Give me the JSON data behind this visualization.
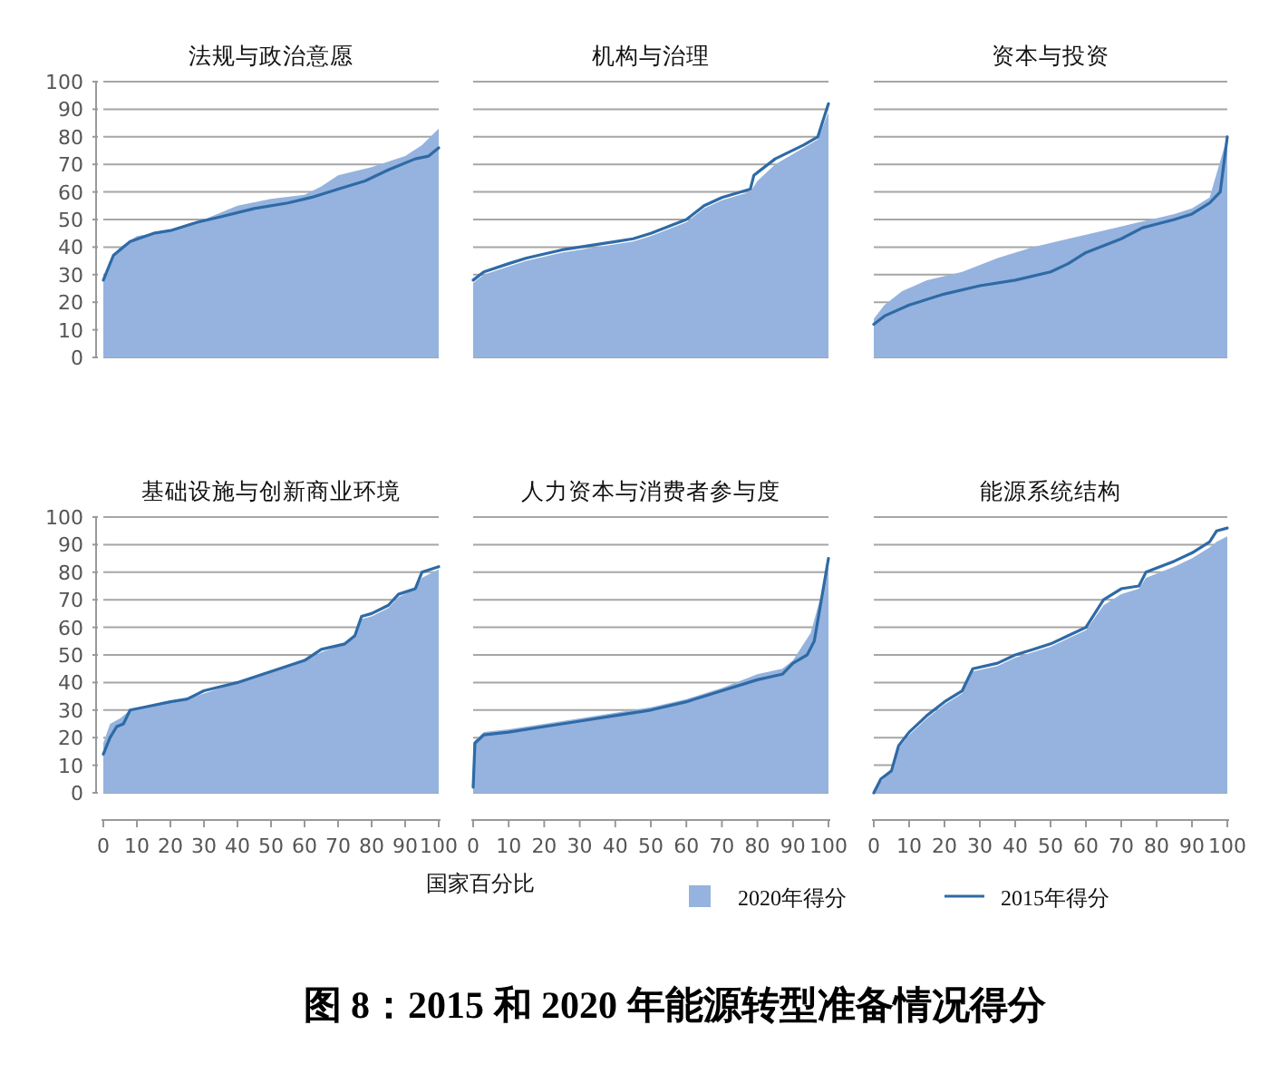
{
  "chart_data": [
    {
      "type": "area",
      "title": "法规与政治意愿",
      "xlim": [
        0,
        100
      ],
      "ylim": [
        0,
        100
      ],
      "yticks": [
        0,
        10,
        20,
        30,
        40,
        50,
        60,
        70,
        80,
        90,
        100
      ],
      "grid": "y",
      "tick_labels": "y",
      "annotations": [
        "图 8：2015 和 2020 年能源转型准备情况得分"
      ],
      "series": [
        {
          "type": "area",
          "color": "#95b3de",
          "x": [
            0,
            3,
            5,
            10,
            20,
            30,
            40,
            50,
            60,
            65,
            70,
            80,
            90,
            95,
            100
          ],
          "values": [
            29,
            37,
            40,
            44,
            46,
            50,
            55,
            57.5,
            59,
            62,
            66,
            69,
            73,
            77,
            83
          ]
        },
        {
          "type": "line",
          "color": "#2e6aa6",
          "x": [
            0,
            3,
            8,
            15,
            20,
            28,
            35,
            45,
            55,
            62,
            70,
            78,
            85,
            93,
            97,
            100
          ],
          "values": [
            28,
            37,
            42,
            45,
            46,
            49,
            51,
            54,
            56,
            58,
            61,
            64,
            68,
            72,
            73,
            76
          ]
        }
      ]
    },
    {
      "type": "area",
      "title": "机构与治理",
      "xlim": [
        0,
        100
      ],
      "ylim": [
        0,
        100
      ],
      "yticks": [
        0,
        10,
        20,
        30,
        40,
        50,
        60,
        70,
        80,
        90,
        100
      ],
      "grid": "y",
      "tick_labels": false,
      "series": [
        {
          "type": "area",
          "color": "#95b3de",
          "x": [
            0,
            3,
            10,
            15,
            25,
            40,
            45,
            50,
            60,
            65,
            70,
            78,
            80,
            85,
            93,
            97,
            100
          ],
          "values": [
            27,
            30,
            33,
            35,
            38,
            41,
            42,
            44,
            49,
            54,
            57,
            60,
            64,
            70,
            76,
            79,
            89
          ]
        },
        {
          "type": "line",
          "color": "#2e6aa6",
          "x": [
            0,
            3,
            10,
            15,
            25,
            40,
            45,
            50,
            60,
            65,
            70,
            78,
            79,
            85,
            93,
            97,
            100
          ],
          "values": [
            28,
            31,
            34,
            36,
            39,
            42,
            43,
            45,
            50,
            55,
            58,
            61,
            66,
            72,
            77,
            80,
            92
          ]
        }
      ]
    },
    {
      "type": "area",
      "title": "资本与投资",
      "xlim": [
        0,
        100
      ],
      "ylim": [
        0,
        100
      ],
      "yticks": [
        0,
        10,
        20,
        30,
        40,
        50,
        60,
        70,
        80,
        90,
        100
      ],
      "grid": "y",
      "tick_labels": false,
      "series": [
        {
          "type": "area",
          "color": "#95b3de",
          "x": [
            0,
            3,
            8,
            15,
            25,
            35,
            45,
            55,
            65,
            75,
            85,
            90,
            95,
            100
          ],
          "values": [
            14,
            19,
            24,
            28,
            31,
            36,
            40,
            43,
            46,
            49,
            52,
            54,
            58,
            80
          ]
        },
        {
          "type": "line",
          "color": "#2e6aa6",
          "x": [
            0,
            3,
            10,
            20,
            30,
            40,
            50,
            55,
            60,
            70,
            76,
            85,
            90,
            95,
            98,
            100
          ],
          "values": [
            12,
            15,
            19,
            23,
            26,
            28,
            31,
            34,
            38,
            43,
            47,
            50,
            52,
            56,
            60,
            80
          ]
        }
      ]
    },
    {
      "type": "area",
      "title": "基础设施与创新商业环境",
      "xlabel": "国家百分比",
      "xlim": [
        0,
        100
      ],
      "xticks": [
        0,
        10,
        20,
        30,
        40,
        50,
        60,
        70,
        80,
        90,
        100
      ],
      "ylim": [
        0,
        100
      ],
      "yticks": [
        0,
        10,
        20,
        30,
        40,
        50,
        60,
        70,
        80,
        90,
        100
      ],
      "grid": "y",
      "series": [
        {
          "type": "area",
          "color": "#95b3de",
          "x": [
            0,
            2,
            5,
            8,
            12,
            20,
            25,
            30,
            40,
            50,
            60,
            65,
            72,
            75,
            77,
            80,
            85,
            88,
            93,
            95,
            100
          ],
          "values": [
            18,
            25,
            27,
            30,
            31,
            33,
            34,
            36,
            40,
            44,
            48,
            51,
            54,
            57,
            63,
            64,
            67,
            71,
            74,
            78,
            81
          ]
        },
        {
          "type": "line",
          "color": "#2e6aa6",
          "x": [
            0,
            2,
            4,
            6,
            8,
            12,
            20,
            25,
            30,
            40,
            50,
            60,
            65,
            72,
            75,
            77,
            80,
            85,
            88,
            93,
            95,
            100
          ],
          "values": [
            14,
            20,
            24,
            25,
            30,
            31,
            33,
            34,
            37,
            40,
            44,
            48,
            52,
            54,
            57,
            64,
            65,
            68,
            72,
            74,
            80,
            82
          ]
        }
      ]
    },
    {
      "type": "area",
      "title": "人力资本与消费者参与度",
      "xlim": [
        0,
        100
      ],
      "xticks": [
        0,
        10,
        20,
        30,
        40,
        50,
        60,
        70,
        80,
        90,
        100
      ],
      "ylim": [
        0,
        100
      ],
      "yticks": [
        0,
        10,
        20,
        30,
        40,
        50,
        60,
        70,
        80,
        90,
        100
      ],
      "grid": "y",
      "tick_labels": "x",
      "legend": "bottom",
      "series": [
        {
          "type": "area",
          "name": "2020年得分",
          "color": "#95b3de",
          "x": [
            0,
            0.5,
            3,
            10,
            20,
            30,
            40,
            50,
            60,
            70,
            80,
            87,
            90,
            95,
            98,
            100
          ],
          "values": [
            18,
            19,
            22,
            23,
            25,
            27,
            29,
            31,
            34,
            38,
            43,
            45,
            48,
            58,
            72,
            85
          ]
        },
        {
          "type": "line",
          "name": "2015年得分",
          "color": "#2e6aa6",
          "x": [
            0,
            0.5,
            3,
            10,
            20,
            30,
            40,
            50,
            60,
            70,
            80,
            87,
            90,
            94,
            96,
            98,
            100
          ],
          "values": [
            2,
            18,
            21,
            22,
            24,
            26,
            28,
            30,
            33,
            37,
            41,
            43,
            47,
            50,
            55,
            70,
            85
          ]
        }
      ]
    },
    {
      "type": "area",
      "title": "能源系统结构",
      "xlim": [
        0,
        100
      ],
      "xticks": [
        0,
        10,
        20,
        30,
        40,
        50,
        60,
        70,
        80,
        90,
        100
      ],
      "ylim": [
        0,
        100
      ],
      "yticks": [
        0,
        10,
        20,
        30,
        40,
        50,
        60,
        70,
        80,
        90,
        100
      ],
      "grid": "y",
      "tick_labels": "x",
      "series": [
        {
          "type": "area",
          "color": "#95b3de",
          "x": [
            0,
            2,
            5,
            7,
            10,
            15,
            20,
            25,
            28,
            35,
            40,
            45,
            50,
            55,
            60,
            65,
            70,
            75,
            77,
            85,
            90,
            95,
            97,
            100
          ],
          "values": [
            0,
            4,
            8,
            16,
            21,
            27,
            32,
            36,
            44,
            46,
            49,
            51,
            53,
            56,
            59,
            68,
            72,
            74,
            78,
            82,
            85,
            89,
            91,
            93
          ]
        },
        {
          "type": "line",
          "color": "#2e6aa6",
          "x": [
            0,
            2,
            5,
            7,
            10,
            15,
            20,
            25,
            28,
            35,
            40,
            45,
            50,
            55,
            60,
            65,
            70,
            75,
            77,
            85,
            90,
            95,
            97,
            100
          ],
          "values": [
            0,
            5,
            8,
            17,
            22,
            28,
            33,
            37,
            45,
            47,
            50,
            52,
            54,
            57,
            60,
            70,
            74,
            75,
            80,
            84,
            87,
            91,
            95,
            96
          ]
        }
      ]
    }
  ]
}
